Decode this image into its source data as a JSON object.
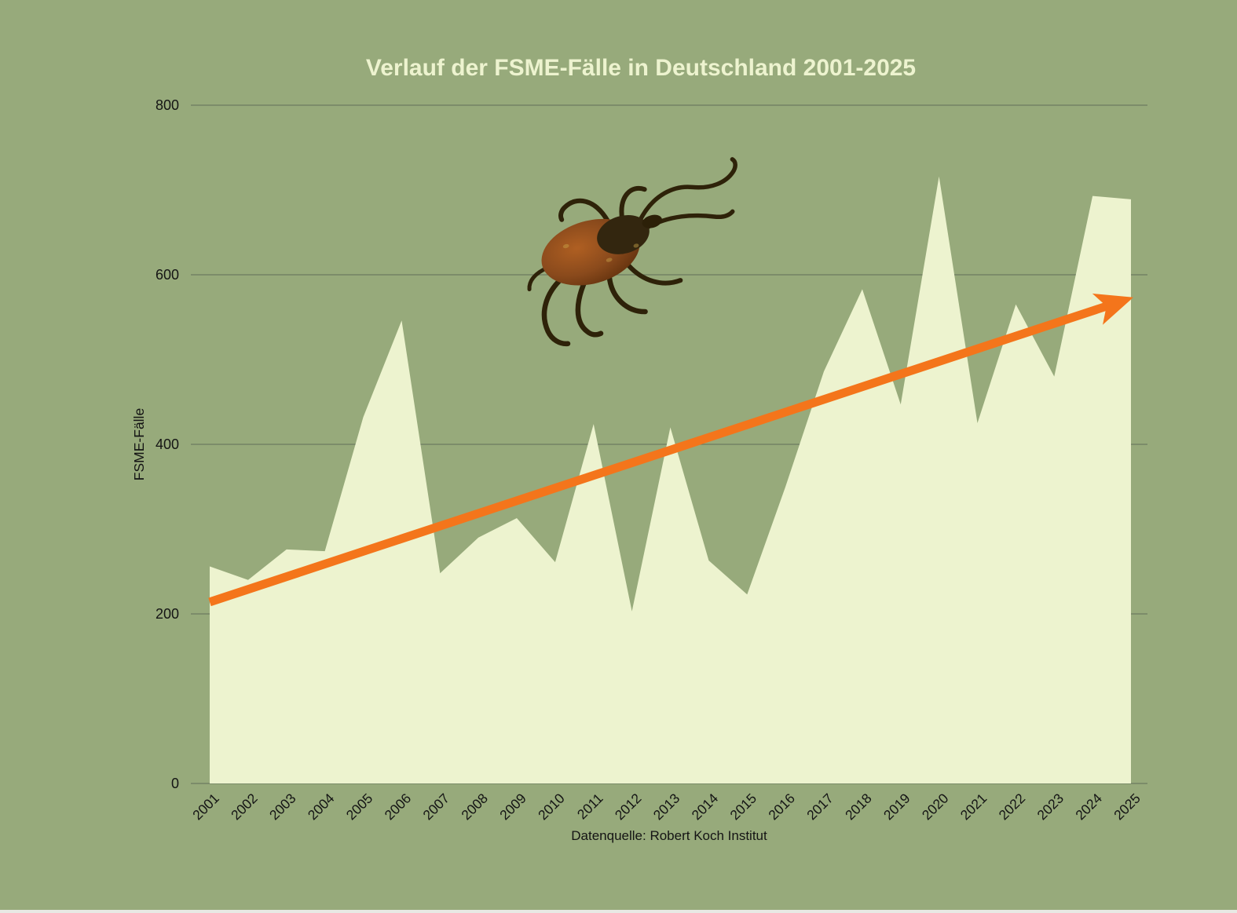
{
  "title": "Verlauf der FSME-Fälle in Deutschland 2001-2025",
  "caption": "Datenquelle: Robert Koch Institut",
  "colors": {
    "background": "#97AA7B",
    "area_fill": "#EDF3CF",
    "title_text": "#EDF3CF",
    "grid": "#6B7A5F",
    "axis_text": "#141414",
    "trend_arrow": "#F4751B",
    "bottom_edge": "#E8E9E4",
    "tick_body_brown": "#8A4A1C",
    "tick_dark_brown": "#33260F"
  },
  "images": {
    "annotation_icon": "tick-insect-photo"
  },
  "chart_data": {
    "type": "area",
    "title": "Verlauf der FSME-Fälle in Deutschland 2001-2025",
    "ylabel": "FSME-Fälle",
    "xlabel": "",
    "caption": "Datenquelle: Robert Koch Institut",
    "x": [
      2001,
      2002,
      2003,
      2004,
      2005,
      2006,
      2007,
      2008,
      2009,
      2010,
      2011,
      2012,
      2013,
      2014,
      2015,
      2016,
      2017,
      2018,
      2019,
      2020,
      2021,
      2022,
      2023,
      2024,
      2025
    ],
    "values": [
      256,
      240,
      276,
      274,
      432,
      546,
      248,
      290,
      313,
      261,
      424,
      203,
      420,
      263,
      223,
      350,
      486,
      583,
      447,
      716,
      425,
      565,
      480,
      693,
      689
    ],
    "series_name": "FSME-Fälle",
    "ylim": [
      0,
      800
    ],
    "yticks": [
      0,
      200,
      400,
      600,
      800
    ],
    "grid": true,
    "legend_position": "none",
    "trend_arrow": {
      "start_year": 2001,
      "start_value": 214,
      "end_year": 2025,
      "end_value": 565
    },
    "annotation": "photo of a tick (Zecke) placed above the curve near 2009-2012"
  }
}
